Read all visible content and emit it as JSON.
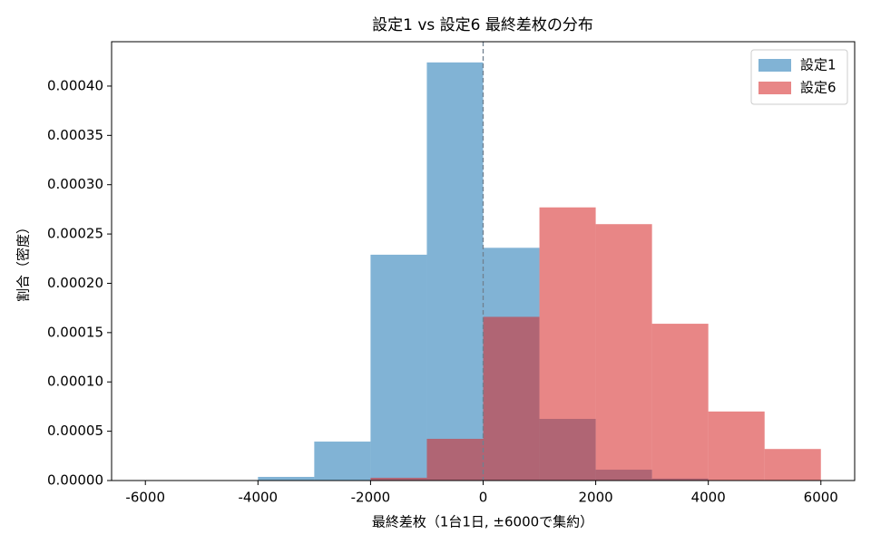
{
  "chart_data": {
    "type": "histogram",
    "title": "設定1 vs 設定6 最終差枚の分布",
    "xlabel": "最終差枚（1台1日, ±6000で集約）",
    "ylabel": "割合（密度）",
    "series": [
      {
        "name": "設定1",
        "color": "#1f77b4",
        "bins": [
          -4000,
          -3000,
          -2000,
          -1000,
          0,
          1000,
          2000,
          3000,
          4000
        ],
        "values": [
          3.7e-06,
          3.95e-05,
          0.000229,
          0.000424,
          0.000236,
          6.25e-05,
          1.1e-05,
          2e-06
        ]
      },
      {
        "name": "設定6",
        "color": "#d62728",
        "bins": [
          -2000,
          -1000,
          0,
          1000,
          2000,
          3000,
          4000,
          5000,
          6000
        ],
        "values": [
          2.8e-06,
          4.23e-05,
          0.000166,
          0.000277,
          0.00026,
          0.000159,
          7e-05,
          3.2e-05
        ]
      }
    ],
    "opacity": 0.56,
    "vline": 0,
    "xlim": [
      -6600,
      6600
    ],
    "ylim": [
      0,
      0.000445
    ],
    "xticks": [
      -6000,
      -4000,
      -2000,
      0,
      2000,
      4000,
      6000
    ],
    "yticks": [
      {
        "value": 0,
        "label": "0.00000"
      },
      {
        "value": 5e-05,
        "label": "0.00005"
      },
      {
        "value": 0.0001,
        "label": "0.00010"
      },
      {
        "value": 0.00015,
        "label": "0.00015"
      },
      {
        "value": 0.0002,
        "label": "0.00020"
      },
      {
        "value": 0.00025,
        "label": "0.00025"
      },
      {
        "value": 0.0003,
        "label": "0.00030"
      },
      {
        "value": 0.00035,
        "label": "0.00035"
      },
      {
        "value": 0.0004,
        "label": "0.00040"
      }
    ],
    "legend": "upper right"
  }
}
